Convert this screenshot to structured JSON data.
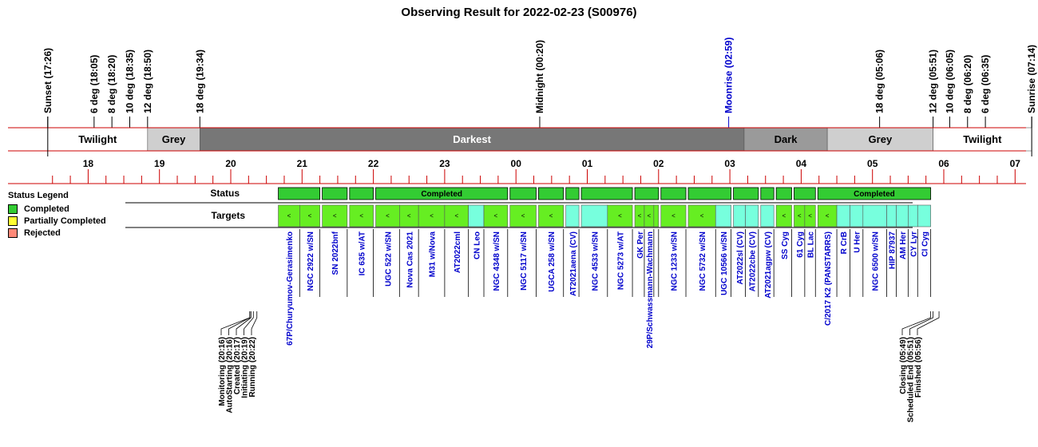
{
  "title": "Observing Result for 2022-02-23 (S00976)",
  "colors": {
    "completed": "#66ee22",
    "completed_status": "#33cc33",
    "partial": "#ffff33",
    "rejected": "#ff8877",
    "target_alt": "#77ffdd",
    "twilight": "#ffffff",
    "grey": "#cfcfcf",
    "dark": "#9a9a9a",
    "darkest": "#777777",
    "axis": "#cc0000",
    "moon": "#0000cc",
    "target_text": "#0000cc"
  },
  "legend": {
    "title": "Status Legend",
    "items": [
      {
        "label": "Completed",
        "color": "#33cc33"
      },
      {
        "label": "Partially Completed",
        "color": "#ffff33"
      },
      {
        "label": "Rejected",
        "color": "#ff8877"
      }
    ]
  },
  "row_labels": {
    "status": "Status",
    "targets": "Targets"
  },
  "chart_data": {
    "type": "timeline",
    "x_unit": "hour (local)",
    "x_range": [
      "17:26",
      "07:14"
    ],
    "hour_ticks": [
      "18",
      "19",
      "20",
      "21",
      "22",
      "23",
      "00",
      "01",
      "02",
      "03",
      "04",
      "05",
      "06",
      "07"
    ],
    "events": [
      {
        "label": "Sunset (17:26)",
        "time": "17:26"
      },
      {
        "label": "6 deg (18:05)",
        "time": "18:05"
      },
      {
        "label": "8 deg (18:20)",
        "time": "18:20"
      },
      {
        "label": "10 deg (18:35)",
        "time": "18:35"
      },
      {
        "label": "12 deg (18:50)",
        "time": "18:50"
      },
      {
        "label": "18 deg (19:34)",
        "time": "19:34"
      },
      {
        "label": "Midnight (00:20)",
        "time": "00:20"
      },
      {
        "label": "Moonrise (02:59)",
        "time": "02:59",
        "moon": true
      },
      {
        "label": "18 deg (05:06)",
        "time": "05:06"
      },
      {
        "label": "12 deg (05:51)",
        "time": "05:51"
      },
      {
        "label": "10 deg (06:05)",
        "time": "06:05"
      },
      {
        "label": "8 deg (06:20)",
        "time": "06:20"
      },
      {
        "label": "6 deg (06:35)",
        "time": "06:35"
      },
      {
        "label": "Sunrise (07:14)",
        "time": "07:14"
      }
    ],
    "phases": [
      {
        "label": "Twilight",
        "start": "17:26",
        "end": "18:50",
        "kind": "twilight"
      },
      {
        "label": "Grey",
        "start": "18:50",
        "end": "19:34",
        "kind": "grey"
      },
      {
        "label": "Darkest",
        "start": "19:34",
        "end": "03:12",
        "kind": "darkest"
      },
      {
        "label": "Dark",
        "start": "03:12",
        "end": "04:22",
        "kind": "dark"
      },
      {
        "label": "Grey",
        "start": "04:22",
        "end": "05:51",
        "kind": "grey"
      },
      {
        "label": "Twilight",
        "start": "05:51",
        "end": "07:14",
        "kind": "twilight"
      }
    ],
    "status_blocks": [
      {
        "start": "20:40",
        "end": "21:15",
        "label": ""
      },
      {
        "start": "21:17",
        "end": "21:38",
        "label": ""
      },
      {
        "start": "21:40",
        "end": "22:00",
        "label": ""
      },
      {
        "start": "22:02",
        "end": "23:53",
        "label": "Completed"
      },
      {
        "start": "23:55",
        "end": "00:17",
        "label": ""
      },
      {
        "start": "00:19",
        "end": "00:40",
        "label": ""
      },
      {
        "start": "00:42",
        "end": "00:53",
        "label": ""
      },
      {
        "start": "00:55",
        "end": "01:38",
        "label": ""
      },
      {
        "start": "01:40",
        "end": "02:00",
        "label": ""
      },
      {
        "start": "02:02",
        "end": "02:23",
        "label": ""
      },
      {
        "start": "02:25",
        "end": "03:01",
        "label": ""
      },
      {
        "start": "03:03",
        "end": "03:24",
        "label": ""
      },
      {
        "start": "03:26",
        "end": "03:37",
        "label": ""
      },
      {
        "start": "03:39",
        "end": "03:52",
        "label": ""
      },
      {
        "start": "03:54",
        "end": "04:12",
        "label": ""
      },
      {
        "start": "04:14",
        "end": "05:49",
        "label": "Completed"
      }
    ],
    "targets": [
      {
        "name": "67P/Churyumov-Gerasimenko",
        "start": "20:40",
        "end": "20:58",
        "status": "completed",
        "mark": "<"
      },
      {
        "name": "NGC 2922 w/SN",
        "start": "20:58",
        "end": "21:15",
        "status": "completed",
        "mark": "<"
      },
      {
        "name": "SN 2022bnf",
        "start": "21:17",
        "end": "21:38",
        "status": "completed",
        "mark": "<"
      },
      {
        "name": "IC 635 w/AT",
        "start": "21:40",
        "end": "22:00",
        "status": "completed",
        "mark": "<"
      },
      {
        "name": "UGC 522 w/SN",
        "start": "22:02",
        "end": "22:22",
        "status": "completed",
        "mark": "<"
      },
      {
        "name": "Nova Cas 2021",
        "start": "22:22",
        "end": "22:38",
        "status": "completed",
        "mark": "<"
      },
      {
        "name": "M31 w/Nova",
        "start": "22:38",
        "end": "23:00",
        "status": "completed",
        "mark": "<"
      },
      {
        "name": "AT2022cml",
        "start": "23:00",
        "end": "23:20",
        "status": "completed",
        "mark": "<"
      },
      {
        "name": "CN Leo",
        "start": "23:20",
        "end": "23:33",
        "status": "alt",
        "mark": ""
      },
      {
        "name": "NGC 4348 w/SN",
        "start": "23:33",
        "end": "23:53",
        "status": "completed",
        "mark": "<"
      },
      {
        "name": "NGC 5117 w/SN",
        "start": "23:55",
        "end": "00:17",
        "status": "completed",
        "mark": "<"
      },
      {
        "name": "UGCA 258 w/SN",
        "start": "00:19",
        "end": "00:40",
        "status": "completed",
        "mark": "<"
      },
      {
        "name": "AT2021aena (CV)",
        "start": "00:42",
        "end": "00:53",
        "status": "alt",
        "mark": ""
      },
      {
        "name": "NGC 4533 w/SN",
        "start": "00:55",
        "end": "01:17",
        "status": "alt",
        "mark": ""
      },
      {
        "name": "NGC 5273 w/AT",
        "start": "01:17",
        "end": "01:38",
        "status": "completed",
        "mark": "<"
      },
      {
        "name": "GK Per",
        "start": "01:40",
        "end": "01:48",
        "status": "completed",
        "mark": "<"
      },
      {
        "name": "29P/Schwassmann-Wachmann",
        "start": "01:48",
        "end": "01:56",
        "status": "completed",
        "mark": "<"
      },
      {
        "name": "",
        "start": "01:56",
        "end": "02:00",
        "status": "completed",
        "mark": ""
      },
      {
        "name": "NGC 1233 w/SN",
        "start": "02:02",
        "end": "02:23",
        "status": "completed",
        "mark": "<"
      },
      {
        "name": "NGC 5732 w/SN",
        "start": "02:25",
        "end": "02:48",
        "status": "completed",
        "mark": "<"
      },
      {
        "name": "UGC 10566 w/SN",
        "start": "02:48",
        "end": "03:01",
        "status": "alt",
        "mark": ""
      },
      {
        "name": "AT2022sl (CV)",
        "start": "03:03",
        "end": "03:13",
        "status": "alt",
        "mark": ""
      },
      {
        "name": "AT2022cbe (CV)",
        "start": "03:13",
        "end": "03:24",
        "status": "alt",
        "mark": ""
      },
      {
        "name": "AT2021agpw (CV)",
        "start": "03:26",
        "end": "03:37",
        "status": "alt",
        "mark": ""
      },
      {
        "name": "SS Cyg",
        "start": "03:39",
        "end": "03:52",
        "status": "completed",
        "mark": "<"
      },
      {
        "name": "61 Cyg",
        "start": "03:54",
        "end": "04:03",
        "status": "completed",
        "mark": "<"
      },
      {
        "name": "BL Lac",
        "start": "04:03",
        "end": "04:12",
        "status": "completed",
        "mark": "<"
      },
      {
        "name": "C/2017 K2 (PANSTARRS)",
        "start": "04:14",
        "end": "04:30",
        "status": "completed",
        "mark": "<"
      },
      {
        "name": "R CrB",
        "start": "04:30",
        "end": "04:41",
        "status": "alt",
        "mark": ""
      },
      {
        "name": "U Her",
        "start": "04:41",
        "end": "04:52",
        "status": "alt",
        "mark": ""
      },
      {
        "name": "NGC 6500 w/SN",
        "start": "04:52",
        "end": "05:12",
        "status": "alt",
        "mark": ""
      },
      {
        "name": "HIP 87937",
        "start": "05:12",
        "end": "05:20",
        "status": "alt",
        "mark": ""
      },
      {
        "name": "AM Her",
        "start": "05:20",
        "end": "05:30",
        "status": "alt",
        "mark": ""
      },
      {
        "name": "CY Lyr",
        "start": "05:30",
        "end": "05:38",
        "status": "alt",
        "mark": ""
      },
      {
        "name": "CI Cyg",
        "start": "05:38",
        "end": "05:49",
        "status": "alt",
        "mark": ""
      }
    ],
    "process_events_start": [
      {
        "label": "Monitoring (20:16)",
        "time": "20:16"
      },
      {
        "label": "AutoStarting (20:16)",
        "time": "20:16"
      },
      {
        "label": "Created (20:17)",
        "time": "20:17"
      },
      {
        "label": "Initiating (20:19)",
        "time": "20:19"
      },
      {
        "label": "Running (20:22)",
        "time": "20:22"
      }
    ],
    "process_events_end": [
      {
        "label": "Closing (05:49)",
        "time": "05:49"
      },
      {
        "label": "Scheduled End (05:51)",
        "time": "05:51"
      },
      {
        "label": "Finished (05:56)",
        "time": "05:56"
      }
    ]
  }
}
